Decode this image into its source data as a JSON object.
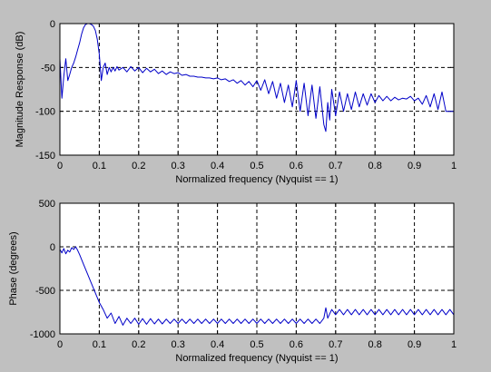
{
  "figure": {
    "background": "#c0c0c0",
    "axes_background": "#ffffff",
    "line_color": "#0000c8",
    "grid_color": "#000000"
  },
  "chart_data": [
    {
      "type": "line",
      "title": "",
      "xlabel": "Normalized frequency (Nyquist == 1)",
      "ylabel": "Magnitude Response (dB)",
      "xlim": [
        0,
        1
      ],
      "ylim": [
        -150,
        0
      ],
      "xticks": [
        "0",
        "0.1",
        "0.2",
        "0.3",
        "0.4",
        "0.5",
        "0.6",
        "0.7",
        "0.8",
        "0.9",
        "1"
      ],
      "yticks": [
        "0",
        "-50",
        "-100",
        "-150"
      ],
      "grid": true,
      "series": [
        {
          "x": [
            0,
            0.005,
            0.01,
            0.015,
            0.02,
            0.025,
            0.03,
            0.035,
            0.04,
            0.045,
            0.05,
            0.055,
            0.06,
            0.065,
            0.07,
            0.075,
            0.08,
            0.085,
            0.09,
            0.095,
            0.1,
            0.105,
            0.11,
            0.115,
            0.12,
            0.125,
            0.13,
            0.135,
            0.14,
            0.145,
            0.15,
            0.16,
            0.17,
            0.18,
            0.19,
            0.2,
            0.21,
            0.22,
            0.23,
            0.24,
            0.25,
            0.26,
            0.27,
            0.28,
            0.29,
            0.3,
            0.31,
            0.32,
            0.33,
            0.34,
            0.35,
            0.36,
            0.37,
            0.38,
            0.39,
            0.4,
            0.41,
            0.42,
            0.43,
            0.44,
            0.45,
            0.46,
            0.47,
            0.48,
            0.49,
            0.5,
            0.51,
            0.52,
            0.53,
            0.54,
            0.55,
            0.56,
            0.57,
            0.58,
            0.59,
            0.6,
            0.61,
            0.62,
            0.63,
            0.64,
            0.65,
            0.66,
            0.67,
            0.675,
            0.68,
            0.685,
            0.69,
            0.7,
            0.71,
            0.72,
            0.73,
            0.74,
            0.75,
            0.76,
            0.77,
            0.78,
            0.79,
            0.8,
            0.81,
            0.82,
            0.83,
            0.84,
            0.85,
            0.86,
            0.87,
            0.88,
            0.89,
            0.9,
            0.91,
            0.92,
            0.93,
            0.94,
            0.95,
            0.96,
            0.97,
            0.98,
            0.99,
            1
          ],
          "y": [
            -40,
            -85,
            -60,
            -40,
            -65,
            -58,
            -50,
            -45,
            -38,
            -30,
            -22,
            -12,
            -5,
            -1,
            0,
            0,
            -1,
            -3,
            -8,
            -18,
            -35,
            -65,
            -50,
            -45,
            -58,
            -50,
            -55,
            -50,
            -54,
            -49,
            -53,
            -50,
            -55,
            -49,
            -54,
            -50,
            -56,
            -51,
            -55,
            -52,
            -57,
            -54,
            -58,
            -55,
            -57,
            -56,
            -59,
            -58,
            -60,
            -60,
            -61,
            -61,
            -62,
            -62,
            -63,
            -62,
            -64,
            -63,
            -66,
            -64,
            -68,
            -65,
            -70,
            -66,
            -72,
            -65,
            -76,
            -64,
            -80,
            -66,
            -85,
            -68,
            -90,
            -70,
            -95,
            -65,
            -100,
            -68,
            -105,
            -70,
            -108,
            -72,
            -115,
            -123,
            -90,
            -110,
            -75,
            -105,
            -78,
            -100,
            -80,
            -98,
            -78,
            -95,
            -80,
            -93,
            -80,
            -90,
            -82,
            -88,
            -83,
            -88,
            -84,
            -87,
            -85,
            -86,
            -83,
            -88,
            -85,
            -92,
            -82,
            -95,
            -80,
            -98,
            -78,
            -100,
            -100,
            -100
          ]
        }
      ]
    },
    {
      "type": "line",
      "title": "",
      "xlabel": "Normalized frequency (Nyquist == 1)",
      "ylabel": "Phase (degrees)",
      "xlim": [
        0,
        1
      ],
      "ylim": [
        -1000,
        500
      ],
      "xticks": [
        "0",
        "0.1",
        "0.2",
        "0.3",
        "0.4",
        "0.5",
        "0.6",
        "0.7",
        "0.8",
        "0.9",
        "1"
      ],
      "yticks": [
        "500",
        "0",
        "-500",
        "-1000"
      ],
      "grid": true,
      "series": [
        {
          "x": [
            0,
            0.005,
            0.01,
            0.015,
            0.02,
            0.025,
            0.03,
            0.035,
            0.04,
            0.045,
            0.05,
            0.06,
            0.07,
            0.08,
            0.09,
            0.1,
            0.11,
            0.12,
            0.13,
            0.14,
            0.15,
            0.16,
            0.17,
            0.18,
            0.19,
            0.2,
            0.21,
            0.22,
            0.23,
            0.24,
            0.25,
            0.26,
            0.27,
            0.28,
            0.29,
            0.3,
            0.31,
            0.32,
            0.33,
            0.34,
            0.35,
            0.36,
            0.37,
            0.38,
            0.39,
            0.4,
            0.41,
            0.42,
            0.43,
            0.44,
            0.45,
            0.46,
            0.47,
            0.48,
            0.49,
            0.5,
            0.51,
            0.52,
            0.53,
            0.54,
            0.55,
            0.56,
            0.57,
            0.58,
            0.59,
            0.6,
            0.61,
            0.62,
            0.63,
            0.64,
            0.65,
            0.66,
            0.67,
            0.675,
            0.68,
            0.69,
            0.7,
            0.71,
            0.72,
            0.73,
            0.74,
            0.75,
            0.76,
            0.77,
            0.78,
            0.79,
            0.8,
            0.81,
            0.82,
            0.83,
            0.84,
            0.85,
            0.86,
            0.87,
            0.88,
            0.89,
            0.9,
            0.91,
            0.92,
            0.93,
            0.94,
            0.95,
            0.96,
            0.97,
            0.98,
            0.99,
            1
          ],
          "y": [
            -30,
            -70,
            -20,
            -80,
            -40,
            -60,
            -10,
            -30,
            0,
            -40,
            -90,
            -200,
            -310,
            -420,
            -530,
            -640,
            -720,
            -820,
            -760,
            -880,
            -800,
            -900,
            -820,
            -880,
            -820,
            -890,
            -825,
            -890,
            -825,
            -885,
            -830,
            -885,
            -830,
            -880,
            -830,
            -880,
            -830,
            -880,
            -830,
            -880,
            -830,
            -880,
            -830,
            -880,
            -830,
            -880,
            -830,
            -880,
            -830,
            -880,
            -830,
            -880,
            -830,
            -880,
            -830,
            -880,
            -830,
            -880,
            -830,
            -880,
            -830,
            -880,
            -830,
            -880,
            -830,
            -880,
            -830,
            -880,
            -830,
            -880,
            -830,
            -880,
            -820,
            -700,
            -820,
            -720,
            -780,
            -720,
            -780,
            -720,
            -780,
            -720,
            -780,
            -720,
            -780,
            -720,
            -780,
            -720,
            -780,
            -720,
            -780,
            -720,
            -780,
            -720,
            -780,
            -720,
            -780,
            -720,
            -780,
            -720,
            -780,
            -720,
            -780,
            -720,
            -780,
            -720,
            -780
          ]
        }
      ]
    }
  ]
}
